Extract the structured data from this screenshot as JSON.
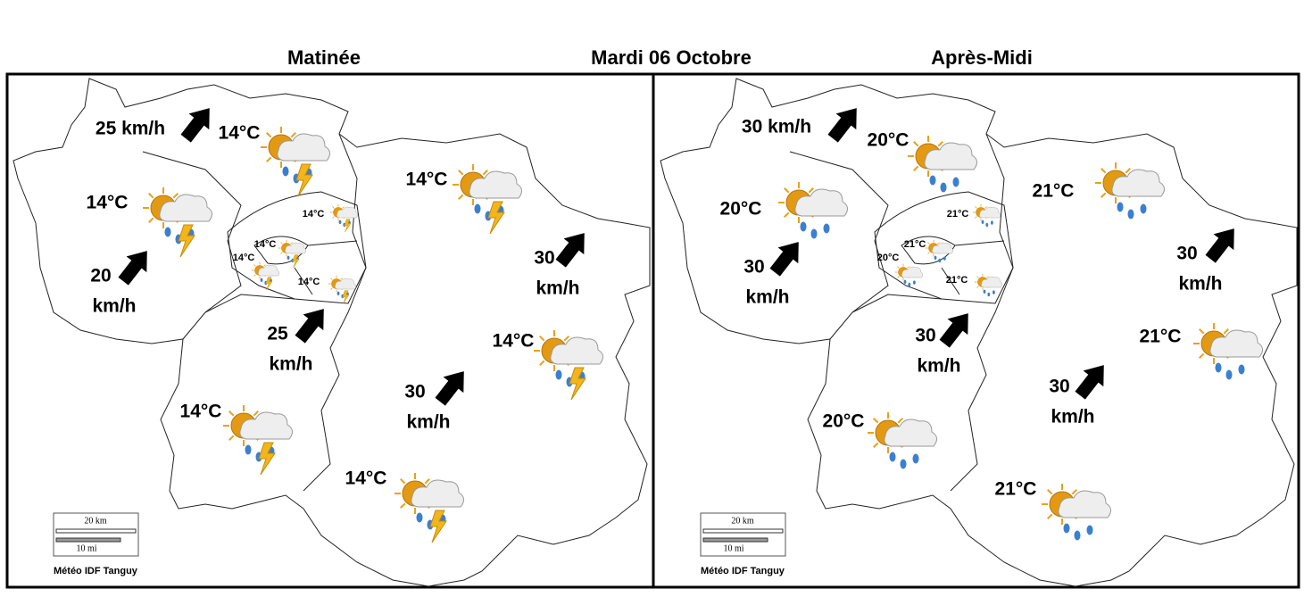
{
  "header": {
    "left": "Matinée",
    "center": "Mardi 06 Octobre",
    "right": "Après-Midi"
  },
  "panels": [
    {
      "temperatures": [
        "14°C",
        "14°C",
        "14°C",
        "14°C",
        "14°C",
        "14°C",
        "14°C",
        "14°C",
        "14°C",
        "14°C"
      ],
      "winds": [
        [
          "25 km/h"
        ],
        [
          "20",
          "km/h"
        ],
        [
          "25",
          "km/h"
        ],
        [
          "30",
          "km/h"
        ],
        [
          "30",
          "km/h"
        ]
      ],
      "scale": {
        "km": "20 km",
        "mi": "10 mi"
      },
      "credit": "Météo IDF Tanguy"
    },
    {
      "temperatures": [
        "20°C",
        "20°C",
        "21°C",
        "21°C",
        "21°C",
        "20°C",
        "21°C",
        "21°C",
        "20°C",
        "21°C"
      ],
      "winds": [
        [
          "30 km/h"
        ],
        [
          "30",
          "km/h"
        ],
        [
          "30",
          "km/h"
        ],
        [
          "30",
          "km/h"
        ],
        [
          "30",
          "km/h"
        ]
      ],
      "scale": {
        "km": "20 km",
        "mi": "10 mi"
      },
      "credit": "Météo IDF Tanguy"
    }
  ]
}
